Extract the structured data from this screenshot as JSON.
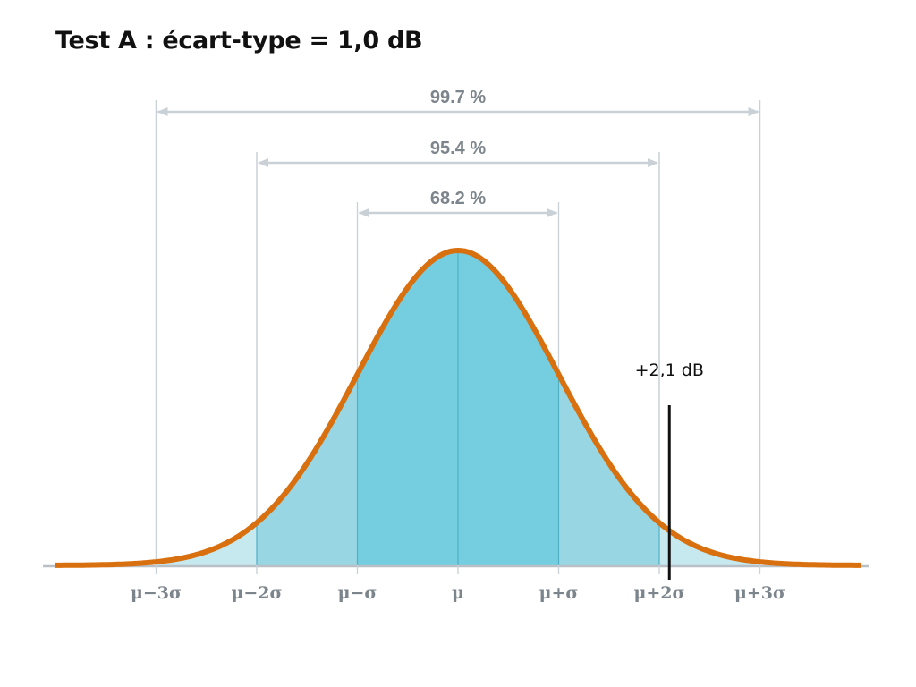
{
  "title": "Test A : écart-type = 1,0 dB",
  "chart_data": {
    "type": "area",
    "title": "Test A : écart-type = 1,0 dB",
    "distribution": "normal",
    "mean": 0,
    "std": 1,
    "xlim": [
      -4,
      4
    ],
    "x_ticks": [
      {
        "value": -3,
        "label": "μ−3σ"
      },
      {
        "value": -2,
        "label": "μ−2σ"
      },
      {
        "value": -1,
        "label": "μ−σ"
      },
      {
        "value": 0,
        "label": "μ"
      },
      {
        "value": 1,
        "label": "μ+σ"
      },
      {
        "value": 2,
        "label": "μ+2σ"
      },
      {
        "value": 3,
        "label": "μ+3σ"
      }
    ],
    "intervals": [
      {
        "range": [
          -3,
          3
        ],
        "label": "99.7 %",
        "fill": "#c6e9f0"
      },
      {
        "range": [
          -2,
          2
        ],
        "label": "95.4 %",
        "fill": "#97d6e2"
      },
      {
        "range": [
          -1,
          1
        ],
        "label": "68.2 %",
        "fill": "#74cee0"
      }
    ],
    "marker": {
      "value": 2.1,
      "label": "+2,1 dB"
    },
    "colors": {
      "curve": "#d9700f",
      "guide": "#c9d0d6",
      "axis": "#b8c0c6",
      "band_edge": "#4fb0c6",
      "marker": "#111111"
    }
  }
}
